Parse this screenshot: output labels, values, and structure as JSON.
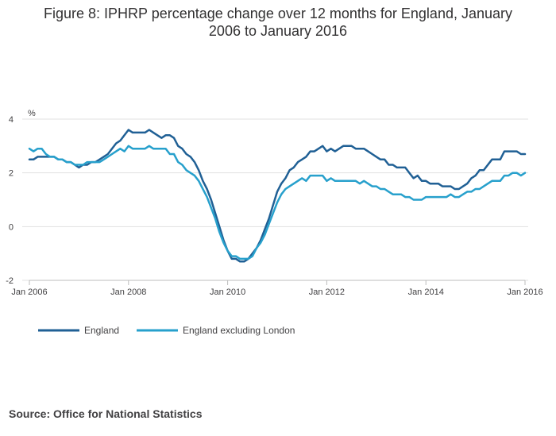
{
  "title_line1": "Figure 8: IPHRP percentage change over 12 months for England, January",
  "title_line2": "2006 to January 2016",
  "source": "Source: Office for National Statistics",
  "colors": {
    "england": "#206095",
    "england_excl_london": "#27a0cc",
    "grid": "#e1e1e1",
    "axis": "#bcbcbc"
  },
  "chart_data": {
    "type": "line",
    "ylabel": "%",
    "ylim": [
      -2,
      4
    ],
    "yticks": [
      -2,
      0,
      2,
      4
    ],
    "ytick_labels": [
      "-2",
      "0",
      "2",
      "4"
    ],
    "x_start": "2006-01",
    "x_end": "2016-01",
    "xticks": [
      {
        "month_index": 0,
        "label": "Jan 2006"
      },
      {
        "month_index": 24,
        "label": "Jan 2008"
      },
      {
        "month_index": 48,
        "label": "Jan 2010"
      },
      {
        "month_index": 72,
        "label": "Jan 2012"
      },
      {
        "month_index": 96,
        "label": "Jan 2014"
      },
      {
        "month_index": 120,
        "label": "Jan 2016"
      }
    ],
    "series": [
      {
        "name": "England",
        "color_key": "england",
        "values": [
          2.5,
          2.5,
          2.6,
          2.6,
          2.6,
          2.6,
          2.6,
          2.5,
          2.5,
          2.4,
          2.4,
          2.3,
          2.2,
          2.3,
          2.3,
          2.4,
          2.4,
          2.5,
          2.6,
          2.7,
          2.9,
          3.1,
          3.2,
          3.4,
          3.6,
          3.5,
          3.5,
          3.5,
          3.5,
          3.6,
          3.5,
          3.4,
          3.3,
          3.4,
          3.4,
          3.3,
          3.0,
          2.9,
          2.7,
          2.6,
          2.4,
          2.1,
          1.7,
          1.4,
          1.0,
          0.5,
          0.0,
          -0.5,
          -0.9,
          -1.2,
          -1.2,
          -1.3,
          -1.3,
          -1.2,
          -1.0,
          -0.8,
          -0.5,
          -0.1,
          0.3,
          0.8,
          1.3,
          1.6,
          1.8,
          2.1,
          2.2,
          2.4,
          2.5,
          2.6,
          2.8,
          2.8,
          2.9,
          3.0,
          2.8,
          2.9,
          2.8,
          2.9,
          3.0,
          3.0,
          3.0,
          2.9,
          2.9,
          2.9,
          2.8,
          2.7,
          2.6,
          2.5,
          2.5,
          2.3,
          2.3,
          2.2,
          2.2,
          2.2,
          2.0,
          1.8,
          1.9,
          1.7,
          1.7,
          1.6,
          1.6,
          1.6,
          1.5,
          1.5,
          1.5,
          1.4,
          1.4,
          1.5,
          1.6,
          1.8,
          1.9,
          2.1,
          2.1,
          2.3,
          2.5,
          2.5,
          2.5,
          2.8,
          2.8,
          2.8,
          2.8,
          2.7,
          2.7
        ]
      },
      {
        "name": "England excluding London",
        "color_key": "england_excl_london",
        "values": [
          2.9,
          2.8,
          2.9,
          2.9,
          2.7,
          2.6,
          2.6,
          2.5,
          2.5,
          2.4,
          2.4,
          2.3,
          2.3,
          2.3,
          2.4,
          2.4,
          2.4,
          2.4,
          2.5,
          2.6,
          2.7,
          2.8,
          2.9,
          2.8,
          3.0,
          2.9,
          2.9,
          2.9,
          2.9,
          3.0,
          2.9,
          2.9,
          2.9,
          2.9,
          2.7,
          2.7,
          2.4,
          2.3,
          2.1,
          2.0,
          1.9,
          1.7,
          1.4,
          1.1,
          0.7,
          0.3,
          -0.2,
          -0.6,
          -0.9,
          -1.1,
          -1.1,
          -1.2,
          -1.2,
          -1.2,
          -1.1,
          -0.8,
          -0.6,
          -0.3,
          0.1,
          0.5,
          0.9,
          1.2,
          1.4,
          1.5,
          1.6,
          1.7,
          1.8,
          1.7,
          1.9,
          1.9,
          1.9,
          1.9,
          1.7,
          1.8,
          1.7,
          1.7,
          1.7,
          1.7,
          1.7,
          1.7,
          1.6,
          1.7,
          1.6,
          1.5,
          1.5,
          1.4,
          1.4,
          1.3,
          1.2,
          1.2,
          1.2,
          1.1,
          1.1,
          1.0,
          1.0,
          1.0,
          1.1,
          1.1,
          1.1,
          1.1,
          1.1,
          1.1,
          1.2,
          1.1,
          1.1,
          1.2,
          1.3,
          1.3,
          1.4,
          1.4,
          1.5,
          1.6,
          1.7,
          1.7,
          1.7,
          1.9,
          1.9,
          2.0,
          2.0,
          1.9,
          2.0
        ]
      }
    ]
  }
}
